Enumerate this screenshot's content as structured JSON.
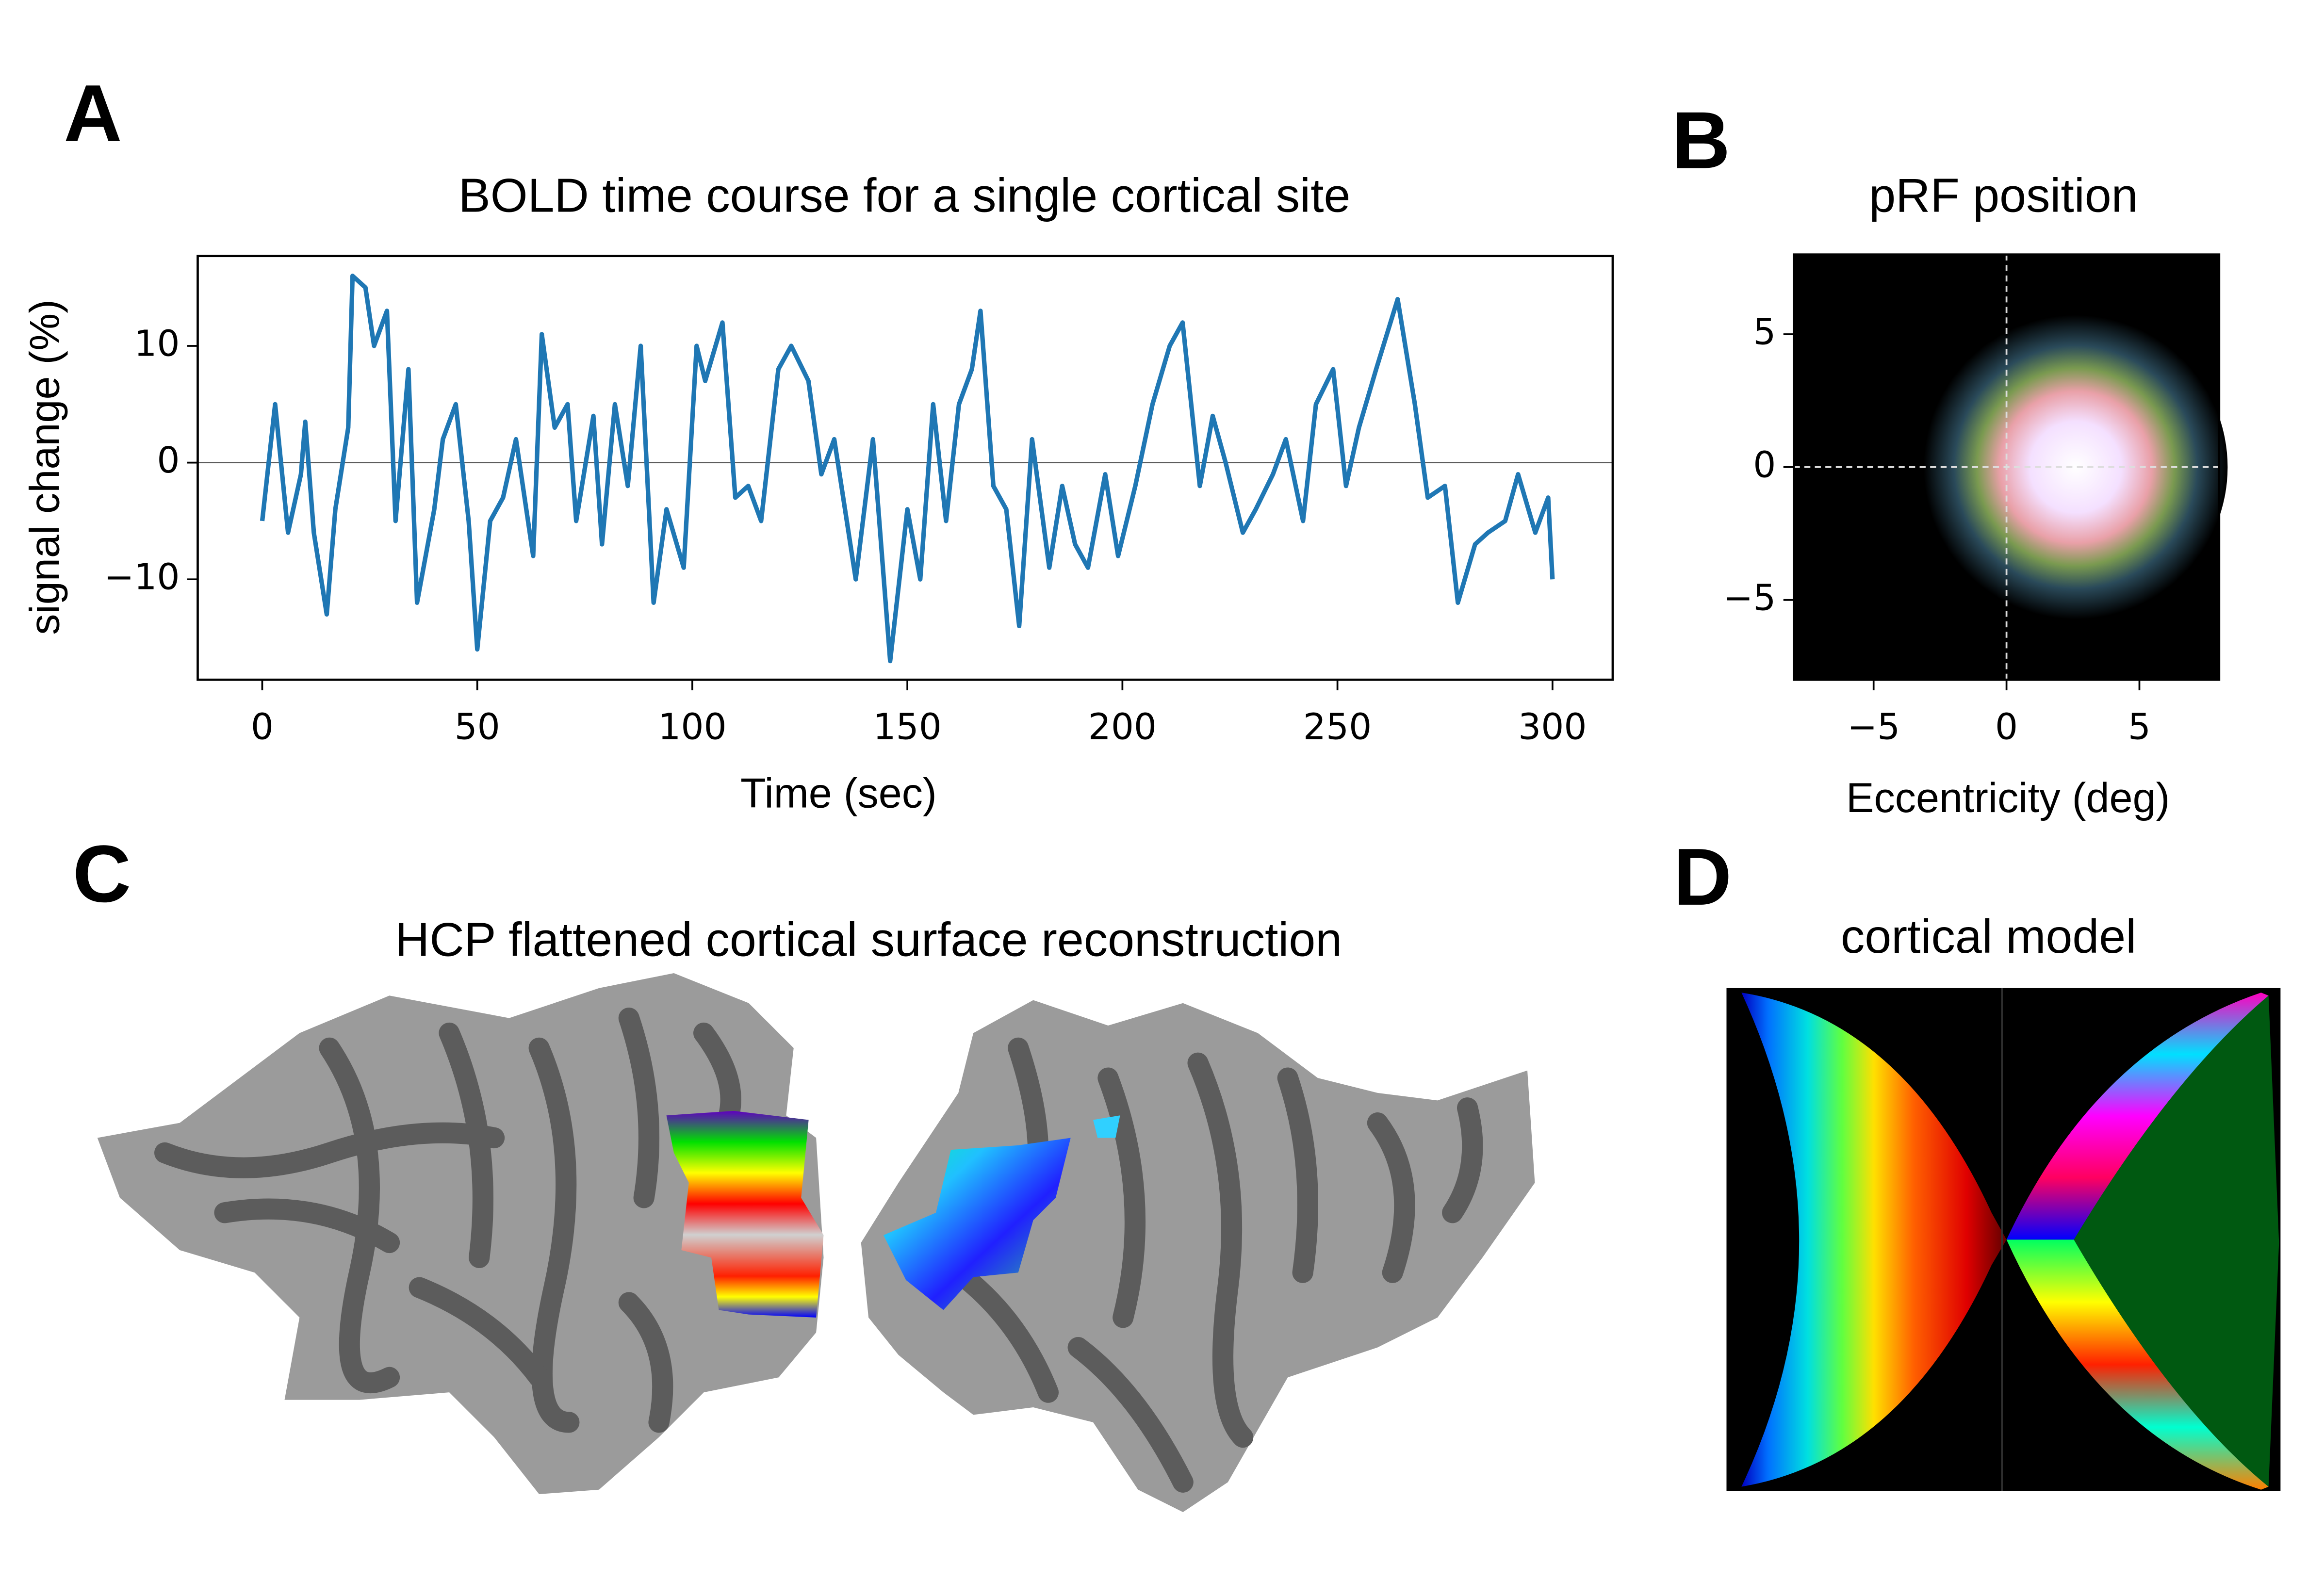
{
  "chart_data": [
    {
      "type": "line",
      "label": "A",
      "title": "BOLD time course for a single cortical site",
      "xlabel": "Time (sec)",
      "ylabel": "signal change (%)",
      "x": [
        0,
        3,
        6,
        9,
        10,
        12,
        15,
        17,
        20,
        21,
        24,
        26,
        29,
        31,
        34,
        36,
        40,
        42,
        45,
        48,
        50,
        53,
        56,
        59,
        63,
        65,
        68,
        71,
        73,
        77,
        79,
        82,
        85,
        88,
        91,
        94,
        98,
        101,
        103,
        107,
        110,
        113,
        116,
        120,
        123,
        127,
        130,
        133,
        138,
        142,
        146,
        150,
        153,
        156,
        159,
        162,
        165,
        167,
        170,
        173,
        176,
        179,
        183,
        186,
        189,
        192,
        196,
        199,
        203,
        207,
        211,
        214,
        218,
        221,
        224,
        228,
        231,
        235,
        238,
        242,
        245,
        249,
        252,
        255,
        259,
        264,
        268,
        271,
        275,
        278,
        282,
        285,
        289,
        292,
        296,
        299,
        300
      ],
      "values": [
        -5,
        5,
        -6,
        -1,
        3.5,
        -6,
        -13,
        -4,
        3,
        16,
        15,
        10,
        13,
        -5,
        8,
        -12,
        -4,
        2,
        5,
        -5,
        -16,
        -5,
        -3,
        2,
        -8,
        11,
        3,
        5,
        -5,
        4,
        -7,
        5,
        -2,
        10,
        -12,
        -4,
        -9,
        10,
        7,
        12,
        -3,
        -2,
        -5,
        8,
        10,
        7,
        -1,
        2,
        -10,
        2,
        -17,
        -4,
        -10,
        5,
        -5,
        5,
        8,
        13,
        -2,
        -4,
        -14,
        2,
        -9,
        -2,
        -7,
        -9,
        -1,
        -8,
        -2,
        5,
        10,
        12,
        -2,
        4,
        0,
        -6,
        -4,
        -1,
        2,
        -5,
        5,
        8,
        -2,
        3,
        8,
        14,
        5,
        -3,
        -2,
        -12,
        -7,
        -6,
        -5,
        -1,
        -6,
        -3,
        -10
      ],
      "color": "#1f77b4",
      "hline": 0,
      "xlim": [
        -15,
        314
      ],
      "ylim": [
        -18.6,
        17.7
      ],
      "xticks": [
        0,
        50,
        100,
        150,
        200,
        250,
        300
      ],
      "yticks": [
        {
          "value": -10,
          "label": "−10"
        },
        0,
        10
      ]
    },
    {
      "type": "heatmap",
      "label": "B",
      "title": "pRF position",
      "xlabel": "Eccentricity (deg)",
      "center": {
        "x": 2.6,
        "y": 0
      },
      "sigma": 2.2,
      "crosshair": 0,
      "xlim": [
        -8,
        8
      ],
      "ylim": [
        -8,
        8
      ],
      "xticks": [
        {
          "value": -5,
          "label": "−5"
        },
        0,
        5
      ],
      "yticks": [
        {
          "value": -5,
          "label": "−5"
        },
        0,
        5
      ]
    },
    {
      "type": "image",
      "label": "C",
      "title": "HCP flattened cortical surface reconstruction"
    },
    {
      "type": "image",
      "label": "D",
      "title": "cortical model"
    }
  ]
}
